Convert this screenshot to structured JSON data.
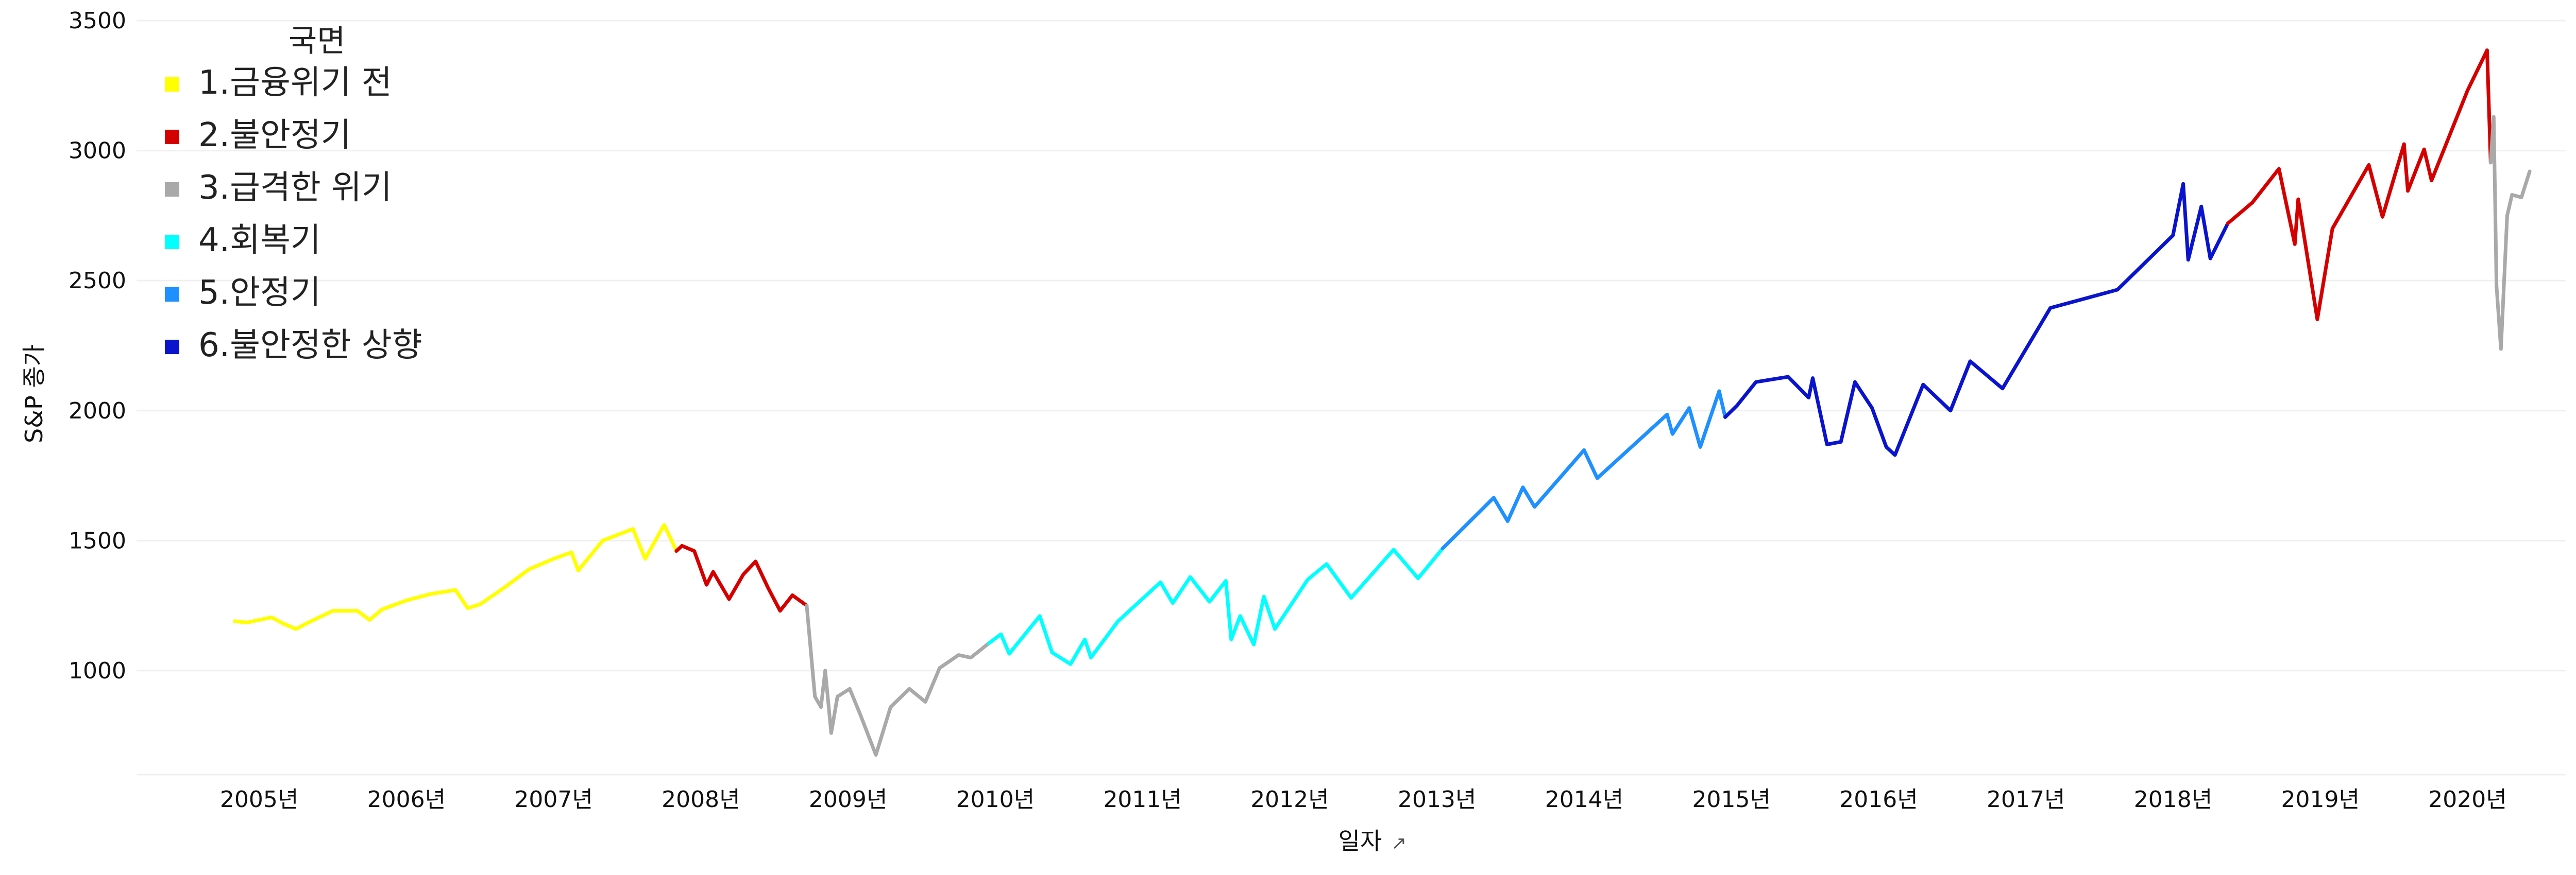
{
  "chart_data": {
    "type": "line",
    "title": "",
    "xlabel": "일자",
    "ylabel": "S&P 종가",
    "x_ticks": [
      "2005년",
      "2006년",
      "2007년",
      "2008년",
      "2009년",
      "2010년",
      "2011년",
      "2012년",
      "2013년",
      "2014년",
      "2015년",
      "2016년",
      "2017년",
      "2018년",
      "2019년",
      "2020년"
    ],
    "y_ticks": [
      1000,
      1500,
      2000,
      2500,
      3000,
      3500
    ],
    "xlim": [
      "2004-03",
      "2020-09"
    ],
    "ylim": [
      600,
      3500
    ],
    "grid": true,
    "legend": {
      "title": "국면",
      "position": "top-left"
    },
    "series": [
      {
        "name": "1.금융위기 전",
        "color": "#ffff00",
        "points": [
          [
            "2004-11-01",
            1190
          ],
          [
            "2004-12-01",
            1185
          ],
          [
            "2005-02-01",
            1205
          ],
          [
            "2005-03-01",
            1180
          ],
          [
            "2005-04-01",
            1160
          ],
          [
            "2005-05-01",
            1185
          ],
          [
            "2005-07-01",
            1230
          ],
          [
            "2005-09-01",
            1230
          ],
          [
            "2005-10-01",
            1195
          ],
          [
            "2005-11-01",
            1235
          ],
          [
            "2006-01-01",
            1270
          ],
          [
            "2006-03-01",
            1295
          ],
          [
            "2006-05-01",
            1310
          ],
          [
            "2006-06-01",
            1240
          ],
          [
            "2006-07-01",
            1255
          ],
          [
            "2006-09-01",
            1320
          ],
          [
            "2006-11-01",
            1390
          ],
          [
            "2007-01-01",
            1430
          ],
          [
            "2007-02-15",
            1455
          ],
          [
            "2007-03-01",
            1385
          ],
          [
            "2007-05-01",
            1500
          ],
          [
            "2007-07-15",
            1545
          ],
          [
            "2007-08-15",
            1430
          ],
          [
            "2007-10-01",
            1560
          ],
          [
            "2007-10-20",
            1500
          ],
          [
            "2007-11-01",
            1460
          ]
        ]
      },
      {
        "name": "2.불안정기",
        "color": "#d40000",
        "points": [
          [
            "2007-11-01",
            1460
          ],
          [
            "2007-11-15",
            1480
          ],
          [
            "2007-12-15",
            1460
          ],
          [
            "2008-01-15",
            1330
          ],
          [
            "2008-02-01",
            1380
          ],
          [
            "2008-03-10",
            1275
          ],
          [
            "2008-04-15",
            1370
          ],
          [
            "2008-05-15",
            1420
          ],
          [
            "2008-06-15",
            1320
          ],
          [
            "2008-07-15",
            1230
          ],
          [
            "2008-08-15",
            1290
          ],
          [
            "2008-09-20",
            1250
          ]
        ]
      },
      {
        "name": "3.급격한 위기",
        "color": "#a9a9a9",
        "points": [
          [
            "2008-09-20",
            1250
          ],
          [
            "2008-10-10",
            900
          ],
          [
            "2008-10-25",
            860
          ],
          [
            "2008-11-05",
            1000
          ],
          [
            "2008-11-20",
            760
          ],
          [
            "2008-12-05",
            900
          ],
          [
            "2009-01-05",
            930
          ],
          [
            "2009-02-01",
            830
          ],
          [
            "2009-03-09",
            676
          ],
          [
            "2009-04-15",
            860
          ],
          [
            "2009-06-01",
            930
          ],
          [
            "2009-07-10",
            880
          ],
          [
            "2009-08-15",
            1010
          ],
          [
            "2009-10-01",
            1060
          ],
          [
            "2009-11-01",
            1050
          ],
          [
            "2009-12-15",
            1105
          ]
        ]
      },
      {
        "name": "4.회복기",
        "color": "#00ffff",
        "points": [
          [
            "2009-12-15",
            1105
          ],
          [
            "2010-01-15",
            1140
          ],
          [
            "2010-02-05",
            1065
          ],
          [
            "2010-04-20",
            1210
          ],
          [
            "2010-05-20",
            1070
          ],
          [
            "2010-07-05",
            1025
          ],
          [
            "2010-08-10",
            1120
          ],
          [
            "2010-08-25",
            1050
          ],
          [
            "2010-11-01",
            1190
          ],
          [
            "2011-02-15",
            1340
          ],
          [
            "2011-03-15",
            1260
          ],
          [
            "2011-04-28",
            1360
          ],
          [
            "2011-06-15",
            1265
          ],
          [
            "2011-07-25",
            1345
          ],
          [
            "2011-08-08",
            1120
          ],
          [
            "2011-08-30",
            1210
          ],
          [
            "2011-10-03",
            1100
          ],
          [
            "2011-10-28",
            1285
          ],
          [
            "2011-11-25",
            1160
          ],
          [
            "2012-02-15",
            1350
          ],
          [
            "2012-04-01",
            1410
          ],
          [
            "2012-06-01",
            1280
          ],
          [
            "2012-09-15",
            1465
          ],
          [
            "2012-11-15",
            1355
          ],
          [
            "2013-01-15",
            1470
          ]
        ]
      },
      {
        "name": "5.안정기",
        "color": "#1e90ff",
        "points": [
          [
            "2013-01-15",
            1470
          ],
          [
            "2013-05-20",
            1665
          ],
          [
            "2013-06-24",
            1575
          ],
          [
            "2013-08-01",
            1705
          ],
          [
            "2013-08-30",
            1630
          ],
          [
            "2013-12-31",
            1848
          ],
          [
            "2014-02-03",
            1740
          ],
          [
            "2014-07-24",
            1985
          ],
          [
            "2014-08-07",
            1910
          ],
          [
            "2014-09-18",
            2010
          ],
          [
            "2014-10-15",
            1860
          ],
          [
            "2014-12-01",
            2075
          ],
          [
            "2014-12-16",
            1975
          ]
        ]
      },
      {
        "name": "6.불안정한 상향",
        "color": "#0a14cc",
        "points": [
          [
            "2014-12-16",
            1975
          ],
          [
            "2015-01-15",
            2020
          ],
          [
            "2015-03-01",
            2110
          ],
          [
            "2015-05-20",
            2130
          ],
          [
            "2015-07-10",
            2050
          ],
          [
            "2015-07-20",
            2125
          ],
          [
            "2015-08-25",
            1870
          ],
          [
            "2015-09-29",
            1880
          ],
          [
            "2015-11-03",
            2110
          ],
          [
            "2015-12-15",
            2010
          ],
          [
            "2016-01-20",
            1860
          ],
          [
            "2016-02-11",
            1829
          ],
          [
            "2016-04-20",
            2100
          ],
          [
            "2016-06-27",
            2000
          ],
          [
            "2016-08-15",
            2190
          ],
          [
            "2016-11-04",
            2085
          ],
          [
            "2017-03-01",
            2395
          ],
          [
            "2017-08-15",
            2465
          ],
          [
            "2017-12-31",
            2674
          ],
          [
            "2018-01-26",
            2872
          ],
          [
            "2018-02-08",
            2580
          ],
          [
            "2018-03-10",
            2785
          ],
          [
            "2018-04-02",
            2585
          ],
          [
            "2018-05-15",
            2720
          ]
        ]
      },
      {
        "name": "2.불안정기",
        "color": "#d40000",
        "points": [
          [
            "2018-05-15",
            2720
          ],
          [
            "2018-07-15",
            2800
          ],
          [
            "2018-09-20",
            2930
          ],
          [
            "2018-10-29",
            2640
          ],
          [
            "2018-11-07",
            2813
          ],
          [
            "2018-12-24",
            2351
          ],
          [
            "2019-01-31",
            2700
          ],
          [
            "2019-04-30",
            2945
          ],
          [
            "2019-06-03",
            2745
          ],
          [
            "2019-07-26",
            3025
          ],
          [
            "2019-08-05",
            2845
          ],
          [
            "2019-09-15",
            3005
          ],
          [
            "2019-10-03",
            2885
          ],
          [
            "2019-12-31",
            3230
          ],
          [
            "2020-02-19",
            3386
          ],
          [
            "2020-02-28",
            2954
          ]
        ]
      },
      {
        "name": "3.급격한 위기",
        "color": "#a9a9a9",
        "points": [
          [
            "2020-02-28",
            2954
          ],
          [
            "2020-03-05",
            3130
          ],
          [
            "2020-03-12",
            2480
          ],
          [
            "2020-03-23",
            2237
          ],
          [
            "2020-04-08",
            2750
          ],
          [
            "2020-04-20",
            2830
          ],
          [
            "2020-05-13",
            2820
          ],
          [
            "2020-06-03",
            2920
          ]
        ]
      }
    ]
  },
  "legend_items": [
    {
      "label": "1.금융위기 전",
      "color": "#ffff00"
    },
    {
      "label": "2.불안정기",
      "color": "#d40000"
    },
    {
      "label": "3.급격한 위기",
      "color": "#a9a9a9"
    },
    {
      "label": "4.회복기",
      "color": "#00ffff"
    },
    {
      "label": "5.안정기",
      "color": "#1e90ff"
    },
    {
      "label": "6.불안정한 상향",
      "color": "#0a14cc"
    }
  ]
}
